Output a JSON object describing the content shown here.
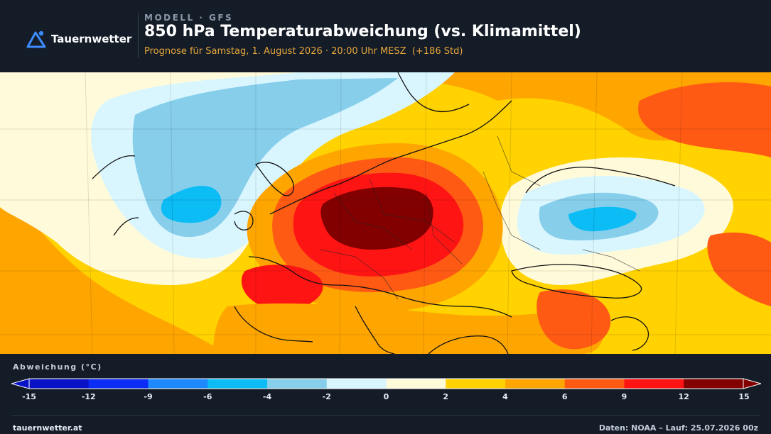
{
  "brand": {
    "name": "Tauernwetter",
    "icon": "triangle-mountain-icon",
    "accent": "#3d8bff"
  },
  "header": {
    "kicker": "MODELL · GFS",
    "title": "850 hPa Temperaturabweichung (vs. Klimamittel)",
    "subtitle": "Prognose für Samstag, 1. August 2026 · 20:00 Uhr MESZ  (+186 Std)"
  },
  "map": {
    "parameter": "850 hPa Temperaturabweichung",
    "feature_names": [
      "warm-anomaly-central-europe",
      "warm-anomaly-iberia-east",
      "cold-anomaly-atlantic",
      "cold-anomaly-black-sea",
      "warm-anomaly-russia-northeast"
    ]
  },
  "legend": {
    "title": "Abweichung (°C)",
    "ticks": [
      "-15",
      "-12",
      "-9",
      "-6",
      "-4",
      "-2",
      "0",
      "2",
      "4",
      "6",
      "9",
      "12",
      "15"
    ],
    "colors": [
      "#0a12c8",
      "#0a2cf5",
      "#1e88ff",
      "#0bbcf5",
      "#87ceeb",
      "#d9f6ff",
      "#fffbda",
      "#ffd200",
      "#ffa500",
      "#ff5a14",
      "#ff1414",
      "#820000"
    ]
  },
  "footer": {
    "site": "tauernwetter.at",
    "source": "Daten: NOAA – Lauf: 25.07.2026 00z"
  }
}
